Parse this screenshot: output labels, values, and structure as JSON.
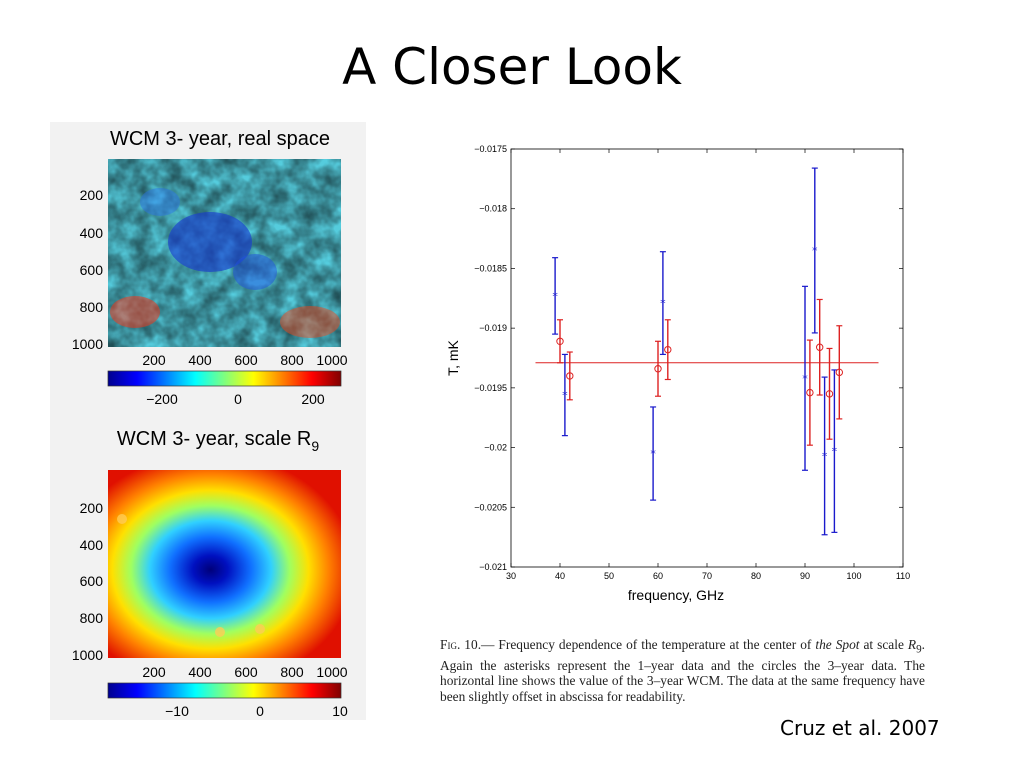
{
  "slide": {
    "title": "A Closer Look",
    "credit": "Cruz et al. 2007"
  },
  "maps": {
    "top": {
      "title": "WCM 3- year, real space",
      "y_ticks": [
        "200",
        "400",
        "600",
        "800",
        "1000"
      ],
      "x_ticks": [
        "200",
        "400",
        "600",
        "800",
        "1000"
      ],
      "colorbar_ticks": [
        "−200",
        "0",
        "200"
      ]
    },
    "bottom": {
      "title": "WCM 3- year, scale R",
      "title_subscript": "9",
      "y_ticks": [
        "200",
        "400",
        "600",
        "800",
        "1000"
      ],
      "x_ticks": [
        "200",
        "400",
        "600",
        "800",
        "1000"
      ],
      "colorbar_ticks": [
        "−10",
        "0",
        "10"
      ]
    }
  },
  "chart_data": {
    "type": "scatter",
    "xlabel": "frequency, GHz",
    "ylabel": "T, mK",
    "xlim": [
      30,
      110
    ],
    "ylim": [
      -0.021,
      -0.0175
    ],
    "x_ticks": [
      "30",
      "40",
      "50",
      "60",
      "70",
      "80",
      "90",
      "100",
      "110"
    ],
    "y_ticks": [
      "−0.0175",
      "−0.018",
      "−0.0185",
      "−0.019",
      "−0.0195",
      "−0.02",
      "−0.0205",
      "−0.021"
    ],
    "grid": false,
    "series": [
      {
        "marker": "asterisk",
        "color": "#1a1acc",
        "points": [
          {
            "x": 39,
            "y": -0.01873,
            "lo": -0.01905,
            "hi": -0.01841
          },
          {
            "x": 41,
            "y": -0.01956,
            "lo": -0.0199,
            "hi": -0.01922
          },
          {
            "x": 59,
            "y": -0.02005,
            "lo": -0.02044,
            "hi": -0.01966
          },
          {
            "x": 61,
            "y": -0.01879,
            "lo": -0.01922,
            "hi": -0.01836
          },
          {
            "x": 90,
            "y": -0.01942,
            "lo": -0.02019,
            "hi": -0.01865
          },
          {
            "x": 92,
            "y": -0.01835,
            "lo": -0.01904,
            "hi": -0.01766
          },
          {
            "x": 94,
            "y": -0.02007,
            "lo": -0.02073,
            "hi": -0.01941
          },
          {
            "x": 96,
            "y": -0.02003,
            "lo": -0.02071,
            "hi": -0.01935
          }
        ]
      },
      {
        "marker": "circle",
        "color": "#dd2222",
        "points": [
          {
            "x": 40,
            "y": -0.01911,
            "lo": -0.01929,
            "hi": -0.01893
          },
          {
            "x": 42,
            "y": -0.0194,
            "lo": -0.0196,
            "hi": -0.0192
          },
          {
            "x": 60,
            "y": -0.01934,
            "lo": -0.01957,
            "hi": -0.01911
          },
          {
            "x": 62,
            "y": -0.01918,
            "lo": -0.01943,
            "hi": -0.01893
          },
          {
            "x": 91,
            "y": -0.01954,
            "lo": -0.01998,
            "hi": -0.0191
          },
          {
            "x": 93,
            "y": -0.01916,
            "lo": -0.01956,
            "hi": -0.01876
          },
          {
            "x": 95,
            "y": -0.01955,
            "lo": -0.01993,
            "hi": -0.01917
          },
          {
            "x": 97,
            "y": -0.01937,
            "lo": -0.01976,
            "hi": -0.01898
          }
        ]
      }
    ],
    "reference_line": {
      "y": -0.01929,
      "x_from": 35,
      "x_to": 105,
      "color": "#dd2222"
    }
  },
  "caption": {
    "fig_label": "Fig.",
    "fig_number": "10.—",
    "text_1": " Frequency dependence of the temperature at the center of ",
    "spot": "the Spot",
    "text_2": " at scale ",
    "scale_sym": "R",
    "scale_sub": "9",
    "text_3": ". Again the asterisks represent the 1–year data and the circles the 3–year data. The horizontal line shows the value of the 3–year WCM. The data at the same frequency have been slightly offset in abscissa for readability."
  }
}
